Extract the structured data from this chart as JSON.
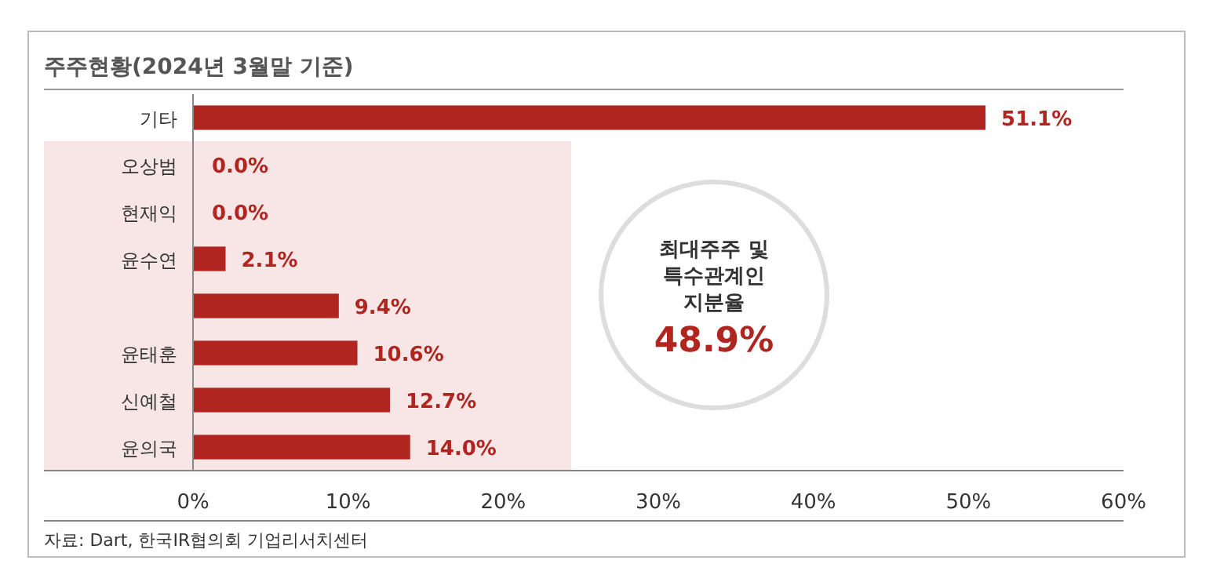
{
  "chart_data": {
    "type": "bar",
    "orientation": "horizontal",
    "title": "주주현황(2024년 3월말 기준)",
    "categories": [
      "기타",
      "오상범",
      "현재익",
      "윤수연",
      null,
      "윤태훈",
      "신예철",
      "윤의국"
    ],
    "values": [
      51.1,
      0.0,
      0.0,
      2.1,
      9.4,
      10.6,
      12.7,
      14.0
    ],
    "value_labels": [
      "51.1%",
      "0.0%",
      "0.0%",
      "2.1%",
      "9.4%",
      "10.6%",
      "12.7%",
      "14.0%"
    ],
    "color": "#b0251f",
    "xlim": [
      0,
      60
    ],
    "xticks": [
      {
        "value": 0,
        "label": "0%"
      },
      {
        "value": 10,
        "label": "10%"
      },
      {
        "value": 20,
        "label": "20%"
      },
      {
        "value": 30,
        "label": "30%"
      },
      {
        "value": 40,
        "label": "40%"
      },
      {
        "value": 50,
        "label": "50%"
      },
      {
        "value": 60,
        "label": "60%"
      }
    ],
    "bands": [
      {
        "axis": "y",
        "from": "오상범",
        "to": "윤의국",
        "color": "#f8e6e6"
      }
    ],
    "annotations": [
      "최대주주 및 특수관계인 지분율 48.9%",
      "자료: Dart, 한국IR협의회 기업리서치센터"
    ],
    "grid": false
  }
}
